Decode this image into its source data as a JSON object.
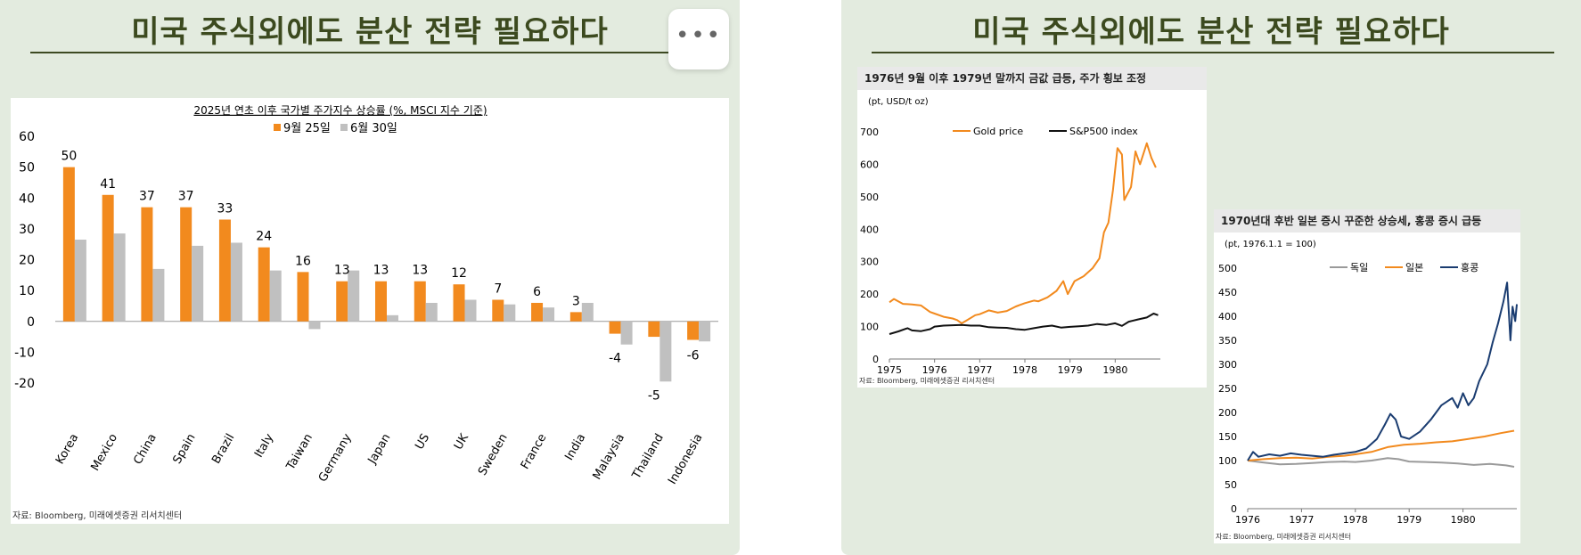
{
  "slide": {
    "title": "미국 주식외에도 분산 전략 필요하다",
    "more_label": "•••"
  },
  "chart_data": [
    {
      "type": "bar",
      "title": "2025년 연초 이후 국가별 주가지수 상승률 (%, MSCI 지수 기준)",
      "categories": [
        "Korea",
        "Mexico",
        "China",
        "Spain",
        "Brazil",
        "Italy",
        "Taiwan",
        "Germany",
        "Japan",
        "US",
        "UK",
        "Sweden",
        "France",
        "India",
        "Malaysia",
        "Thailand",
        "Indonesia"
      ],
      "series": [
        {
          "name": "9월 25일",
          "color": "#f28a1e",
          "values": [
            50,
            41,
            37,
            37,
            33,
            24,
            16,
            13,
            13,
            13,
            12,
            7,
            6,
            3,
            -4,
            -5,
            -6
          ],
          "labels": [
            "50",
            "41",
            "37",
            "37",
            "33",
            "24",
            "16",
            "13",
            "13",
            "13",
            "12",
            "7",
            "6",
            "3",
            "-4",
            "-5",
            "-6"
          ]
        },
        {
          "name": "6월 30일",
          "color": "#c0c0c0",
          "values": [
            26.5,
            28.5,
            17,
            24.5,
            25.5,
            16.5,
            -2.5,
            16.5,
            2,
            6,
            7,
            5.5,
            4.5,
            6,
            -7.5,
            -19.5,
            -6.5
          ]
        }
      ],
      "ylim": [
        -20,
        60
      ],
      "yticks": [
        "-20",
        "-10",
        "0",
        "10",
        "20",
        "30",
        "40",
        "50",
        "60"
      ],
      "source": "자료: Bloomberg, 미래에셋증권 리서치센터"
    },
    {
      "type": "line",
      "title": "1976년 9월 이후 1979년 말까지 금값 급등, 주가 횡보 조정",
      "unit": "(pt, USD/t oz)",
      "ylim": [
        0,
        700
      ],
      "yticks": [
        "0",
        "100",
        "200",
        "300",
        "400",
        "500",
        "600",
        "700"
      ],
      "xticks": [
        "1975",
        "1976",
        "1977",
        "1978",
        "1979",
        "1980"
      ],
      "xlim": [
        1975,
        1981
      ],
      "series": [
        {
          "name": "Gold price",
          "color": "#f28a1e",
          "points": [
            [
              1975,
              175
            ],
            [
              1975.1,
              185
            ],
            [
              1975.3,
              170
            ],
            [
              1975.5,
              168
            ],
            [
              1975.7,
              165
            ],
            [
              1975.9,
              145
            ],
            [
              1976,
              140
            ],
            [
              1976.2,
              130
            ],
            [
              1976.4,
              125
            ],
            [
              1976.5,
              120
            ],
            [
              1976.6,
              110
            ],
            [
              1976.7,
              118
            ],
            [
              1976.9,
              135
            ],
            [
              1977,
              138
            ],
            [
              1977.2,
              150
            ],
            [
              1977.4,
              143
            ],
            [
              1977.6,
              148
            ],
            [
              1977.8,
              162
            ],
            [
              1978,
              172
            ],
            [
              1978.2,
              180
            ],
            [
              1978.3,
              178
            ],
            [
              1978.5,
              190
            ],
            [
              1978.7,
              210
            ],
            [
              1978.85,
              240
            ],
            [
              1978.95,
              200
            ],
            [
              1979.1,
              240
            ],
            [
              1979.3,
              255
            ],
            [
              1979.5,
              280
            ],
            [
              1979.65,
              310
            ],
            [
              1979.75,
              390
            ],
            [
              1979.85,
              420
            ],
            [
              1979.95,
              520
            ],
            [
              1980.05,
              650
            ],
            [
              1980.15,
              630
            ],
            [
              1980.2,
              490
            ],
            [
              1980.35,
              530
            ],
            [
              1980.45,
              640
            ],
            [
              1980.55,
              600
            ],
            [
              1980.7,
              665
            ],
            [
              1980.8,
              620
            ],
            [
              1980.9,
              590
            ]
          ]
        },
        {
          "name": "S&P500 index",
          "color": "#111111",
          "points": [
            [
              1975,
              77
            ],
            [
              1975.2,
              85
            ],
            [
              1975.4,
              95
            ],
            [
              1975.5,
              88
            ],
            [
              1975.7,
              86
            ],
            [
              1975.9,
              92
            ],
            [
              1976,
              100
            ],
            [
              1976.2,
              103
            ],
            [
              1976.4,
              104
            ],
            [
              1976.6,
              105
            ],
            [
              1976.8,
              103
            ],
            [
              1977,
              103
            ],
            [
              1977.2,
              98
            ],
            [
              1977.4,
              97
            ],
            [
              1977.6,
              96
            ],
            [
              1977.8,
              92
            ],
            [
              1978,
              90
            ],
            [
              1978.2,
              95
            ],
            [
              1978.4,
              100
            ],
            [
              1978.6,
              103
            ],
            [
              1978.8,
              97
            ],
            [
              1979,
              99
            ],
            [
              1979.2,
              101
            ],
            [
              1979.4,
              103
            ],
            [
              1979.6,
              108
            ],
            [
              1979.8,
              105
            ],
            [
              1980,
              110
            ],
            [
              1980.15,
              102
            ],
            [
              1980.3,
              115
            ],
            [
              1980.5,
              122
            ],
            [
              1980.7,
              128
            ],
            [
              1980.85,
              140
            ],
            [
              1980.95,
              135
            ]
          ]
        }
      ],
      "source": "자료: Bloomberg, 미래에셋증권 리서치센터"
    },
    {
      "type": "line",
      "title": "1970년대 후반 일본 증시 꾸준한 상승세, 홍콩 증시 급등",
      "unit": "(pt, 1976.1.1 = 100)",
      "ylim": [
        0,
        500
      ],
      "yticks": [
        "0",
        "50",
        "100",
        "150",
        "200",
        "250",
        "300",
        "350",
        "400",
        "450",
        "500"
      ],
      "xticks": [
        "1976",
        "1977",
        "1978",
        "1979",
        "1980"
      ],
      "xlim": [
        1976,
        1981
      ],
      "series": [
        {
          "name": "독일",
          "color": "#9a9a9a",
          "points": [
            [
              1976,
              100
            ],
            [
              1976.3,
              96
            ],
            [
              1976.6,
              92
            ],
            [
              1976.9,
              93
            ],
            [
              1977.2,
              95
            ],
            [
              1977.5,
              97
            ],
            [
              1977.8,
              98
            ],
            [
              1978,
              97
            ],
            [
              1978.3,
              100
            ],
            [
              1978.6,
              105
            ],
            [
              1978.8,
              103
            ],
            [
              1979,
              98
            ],
            [
              1979.3,
              97
            ],
            [
              1979.6,
              96
            ],
            [
              1979.9,
              94
            ],
            [
              1980.2,
              91
            ],
            [
              1980.5,
              93
            ],
            [
              1980.8,
              90
            ],
            [
              1980.95,
              87
            ]
          ]
        },
        {
          "name": "일본",
          "color": "#f28a1e",
          "points": [
            [
              1976,
              100
            ],
            [
              1976.3,
              103
            ],
            [
              1976.6,
              105
            ],
            [
              1976.9,
              106
            ],
            [
              1977.2,
              104
            ],
            [
              1977.5,
              108
            ],
            [
              1977.8,
              110
            ],
            [
              1978,
              113
            ],
            [
              1978.3,
              118
            ],
            [
              1978.6,
              128
            ],
            [
              1978.9,
              133
            ],
            [
              1979.2,
              135
            ],
            [
              1979.5,
              138
            ],
            [
              1979.8,
              140
            ],
            [
              1980.1,
              145
            ],
            [
              1980.4,
              150
            ],
            [
              1980.7,
              157
            ],
            [
              1980.95,
              162
            ]
          ]
        },
        {
          "name": "홍콩",
          "color": "#1a3c70",
          "points": [
            [
              1976,
              100
            ],
            [
              1976.1,
              118
            ],
            [
              1976.2,
              108
            ],
            [
              1976.4,
              113
            ],
            [
              1976.6,
              110
            ],
            [
              1976.8,
              115
            ],
            [
              1977,
              112
            ],
            [
              1977.2,
              110
            ],
            [
              1977.4,
              108
            ],
            [
              1977.6,
              112
            ],
            [
              1977.8,
              115
            ],
            [
              1978,
              118
            ],
            [
              1978.2,
              125
            ],
            [
              1978.4,
              145
            ],
            [
              1978.55,
              175
            ],
            [
              1978.65,
              197
            ],
            [
              1978.75,
              185
            ],
            [
              1978.85,
              150
            ],
            [
              1979,
              145
            ],
            [
              1979.2,
              160
            ],
            [
              1979.4,
              185
            ],
            [
              1979.6,
              215
            ],
            [
              1979.8,
              230
            ],
            [
              1979.9,
              210
            ],
            [
              1980,
              240
            ],
            [
              1980.1,
              215
            ],
            [
              1980.2,
              230
            ],
            [
              1980.3,
              265
            ],
            [
              1980.45,
              300
            ],
            [
              1980.55,
              345
            ],
            [
              1980.65,
              385
            ],
            [
              1980.75,
              430
            ],
            [
              1980.82,
              470
            ],
            [
              1980.88,
              350
            ],
            [
              1980.92,
              420
            ],
            [
              1980.97,
              390
            ],
            [
              1981,
              425
            ]
          ]
        }
      ],
      "source": "자료: Bloomberg, 미래에셋증권 리서치센터"
    }
  ]
}
